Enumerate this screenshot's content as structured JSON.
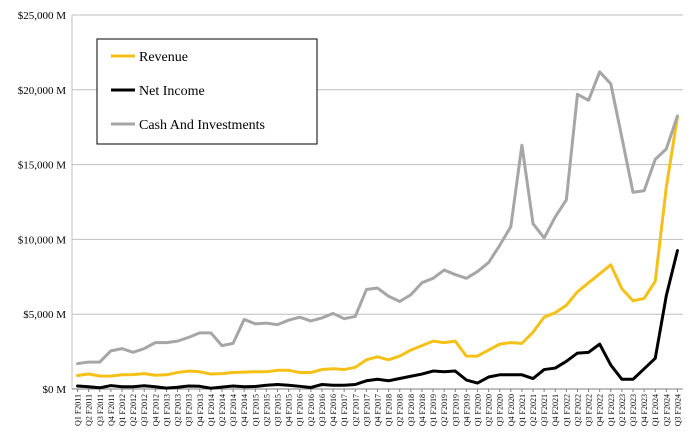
{
  "chart_data": {
    "type": "line",
    "title": "",
    "xlabel": "",
    "ylabel": "",
    "ylim": [
      0,
      25000
    ],
    "yticks": [
      0,
      5000,
      10000,
      15000,
      20000,
      25000
    ],
    "ytick_labels": [
      "$0 M",
      "$5,000 M",
      "$10,000 M",
      "$15,000 M",
      "$20,000 M",
      "$25,000 M"
    ],
    "grid": "horizontal",
    "legend_position": "top-left",
    "x": [
      "Q1 F2011",
      "Q2 F2011",
      "Q3 F2011",
      "Q4 F2011",
      "Q1 F2012",
      "Q2 F2012",
      "Q3 F2012",
      "Q4 F2012",
      "Q1 F2013",
      "Q2 F2013",
      "Q3 F2013",
      "Q4 F2013",
      "Q1 F2014",
      "Q2 F2014",
      "Q3 F2014",
      "Q4 F2014",
      "Q1 F2015",
      "Q2 F2015",
      "Q3 F2015",
      "Q4 F2015",
      "Q1 F2016",
      "Q2 F2016",
      "Q3 F2016",
      "Q4 F2016",
      "Q1 F2017",
      "Q2 F2017",
      "Q3 F2017",
      "Q4 F2017",
      "Q1 F2018",
      "Q2 F2018",
      "Q3 F2018",
      "Q4 F2018",
      "Q1 F2019",
      "Q2 F2019",
      "Q3 F2019",
      "Q4 F2019",
      "Q1 F2020",
      "Q2 F2020",
      "Q3 F2020",
      "Q4 F2020",
      "Q1 F2021",
      "Q2 F2021",
      "Q3 F2021",
      "Q4 F2021",
      "Q1 F2022",
      "Q2 F2022",
      "Q3 F2022",
      "Q4 F2022",
      "Q1 F2023",
      "Q2 F2023",
      "Q3 F2023",
      "Q4 F2023",
      "Q1 F2024",
      "Q2 F2024",
      "Q3 F2024"
    ],
    "series": [
      {
        "name": "Revenue",
        "color": "#f5c118",
        "values": [
          900,
          1000,
          870,
          860,
          950,
          960,
          1030,
          920,
          950,
          1100,
          1200,
          1150,
          1000,
          1030,
          1100,
          1130,
          1150,
          1150,
          1250,
          1250,
          1100,
          1100,
          1300,
          1350,
          1300,
          1450,
          1950,
          2150,
          1950,
          2200,
          2600,
          2900,
          3200,
          3100,
          3200,
          2200,
          2200,
          2600,
          3000,
          3100,
          3050,
          3800,
          4800,
          5100,
          5600,
          6500,
          7100,
          7700,
          8300,
          6700,
          5900,
          6050,
          7200,
          13500,
          18200
        ]
      },
      {
        "name": "Net Income",
        "color": "#000000",
        "values": [
          200,
          150,
          80,
          230,
          150,
          150,
          220,
          150,
          60,
          120,
          200,
          180,
          50,
          130,
          200,
          150,
          170,
          250,
          300,
          250,
          180,
          100,
          300,
          250,
          250,
          300,
          550,
          650,
          550,
          700,
          850,
          1000,
          1200,
          1150,
          1200,
          600,
          400,
          800,
          950,
          950,
          950,
          700,
          1300,
          1400,
          1850,
          2400,
          2450,
          3000,
          1600,
          650,
          650,
          1350,
          2050,
          6250,
          9250
        ]
      },
      {
        "name": "Cash And Investments",
        "color": "#a6a6a6",
        "values": [
          1700,
          1800,
          1800,
          2550,
          2700,
          2450,
          2700,
          3100,
          3100,
          3200,
          3450,
          3750,
          3750,
          2900,
          3050,
          4650,
          4350,
          4400,
          4300,
          4600,
          4800,
          4550,
          4750,
          5050,
          4700,
          4850,
          6650,
          6750,
          6200,
          5850,
          6300,
          7100,
          7400,
          7950,
          7650,
          7400,
          7850,
          8450,
          9600,
          10850,
          16300,
          11050,
          10100,
          11500,
          12650,
          19700,
          19300,
          21200,
          20400,
          16800,
          13150,
          13250,
          15350,
          16050,
          18250
        ]
      }
    ]
  }
}
